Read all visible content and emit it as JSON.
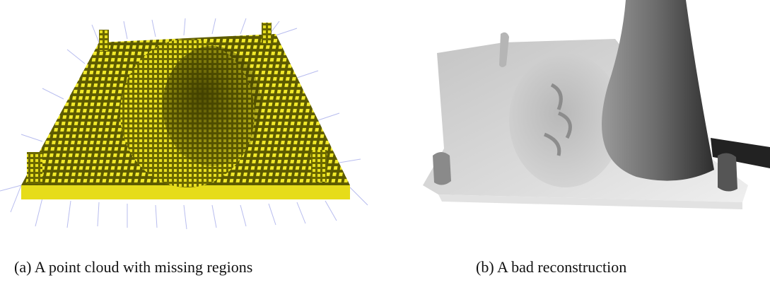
{
  "figure": {
    "panels": [
      {
        "caption": "(a) A point cloud with missing regions"
      },
      {
        "caption": "(b) A bad reconstruction"
      }
    ]
  }
}
